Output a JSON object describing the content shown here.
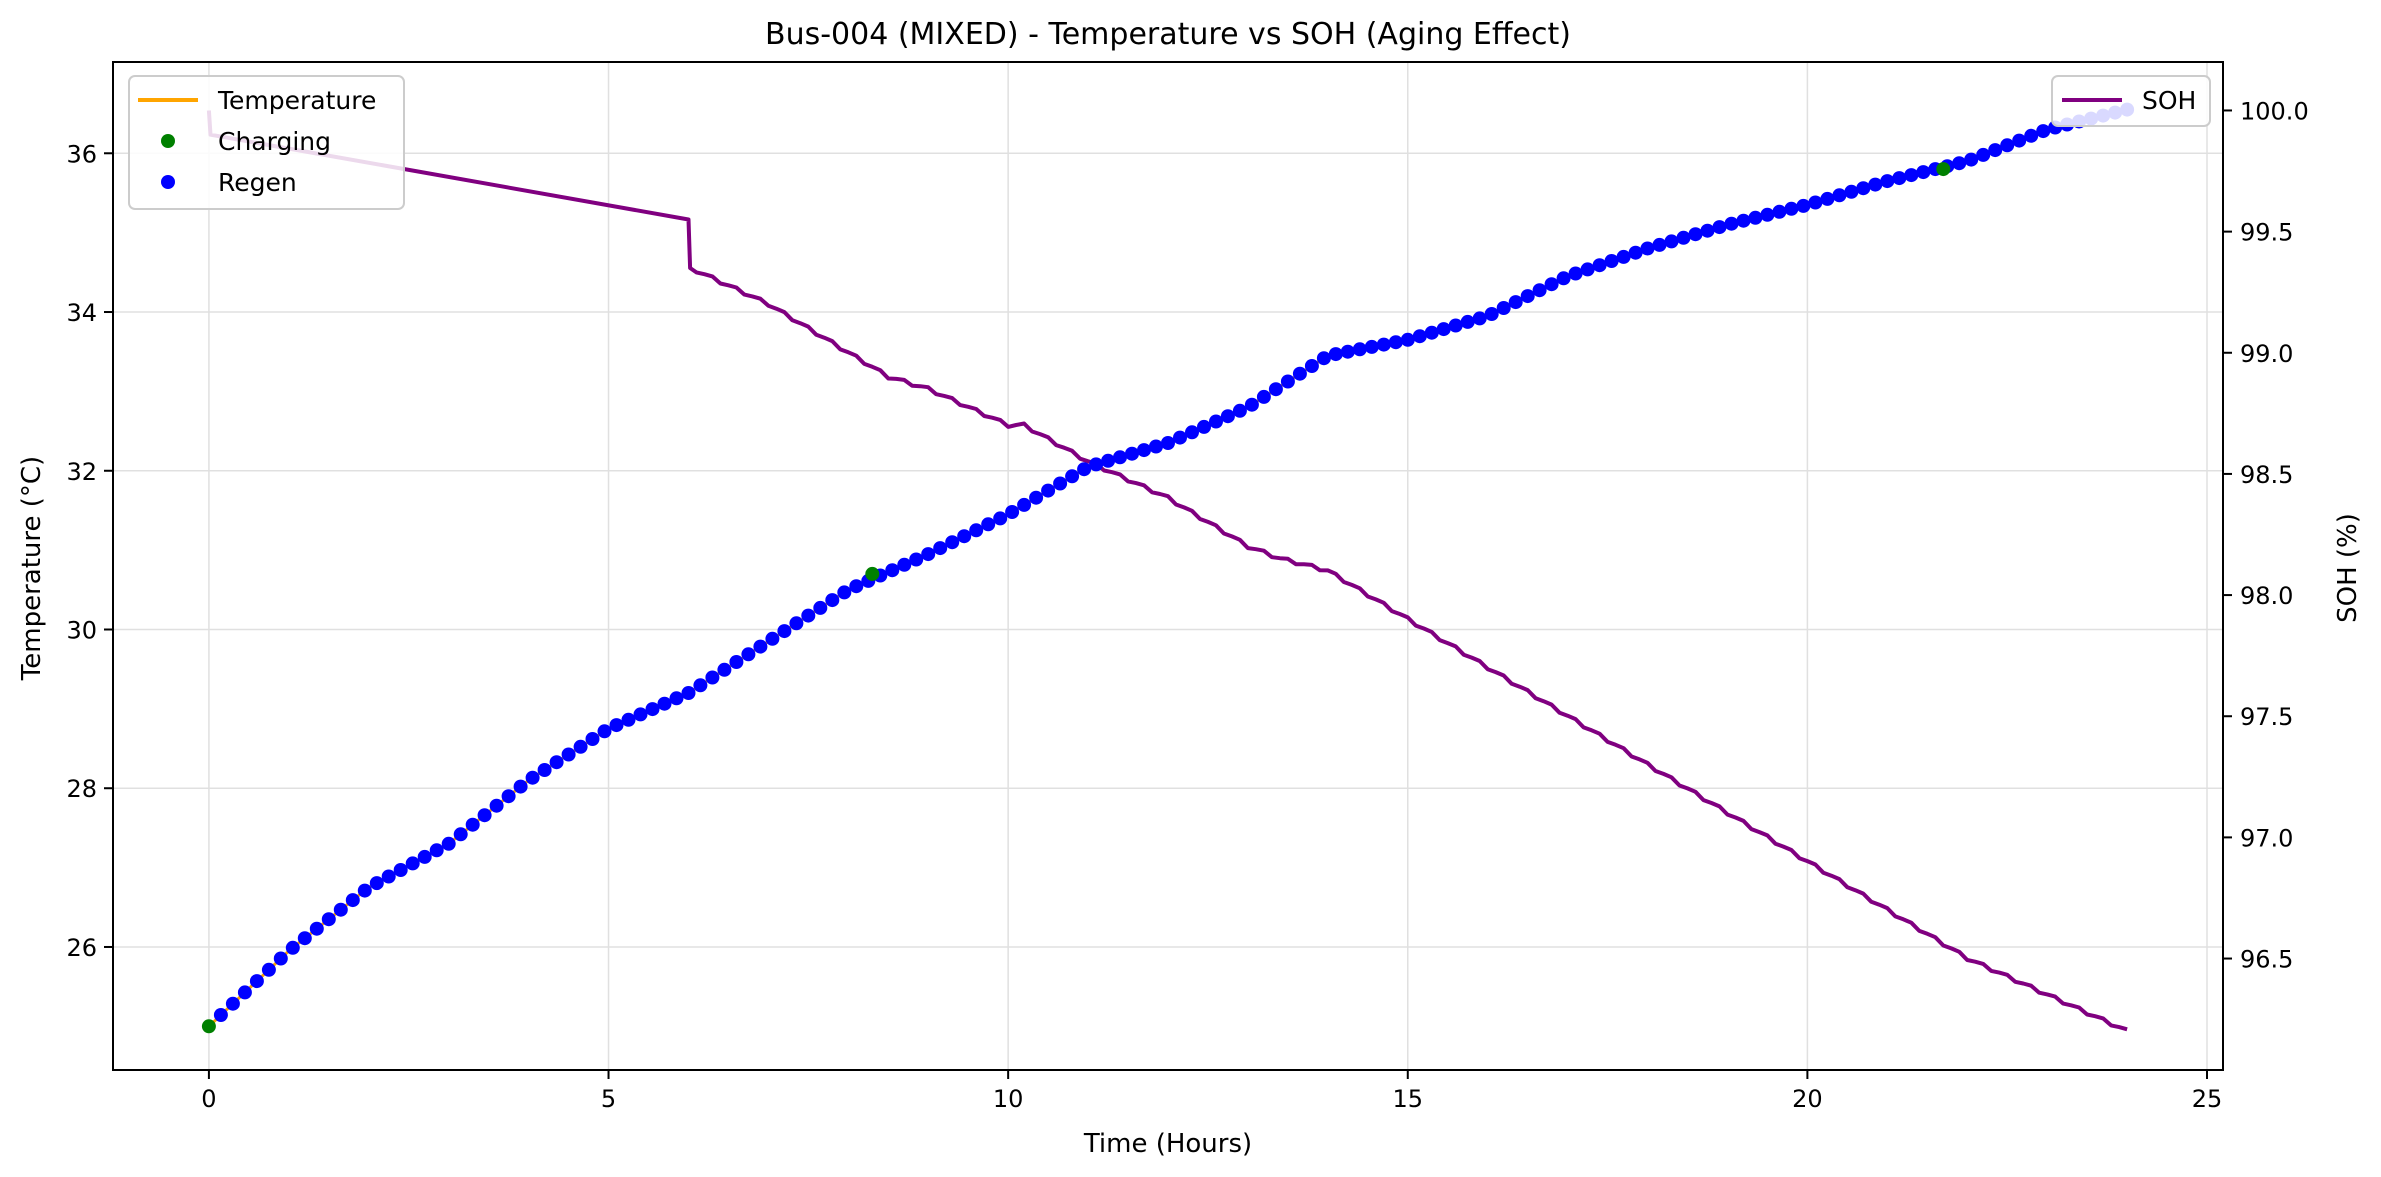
{
  "chart_data": {
    "type": "line",
    "title": "Bus-004 (MIXED) - Temperature vs SOH (Aging Effect)",
    "xlabel": "Time (Hours)",
    "ylabel_left": "Temperature (°C)",
    "ylabel_right": "SOH (%)",
    "xlim": [
      -1.2,
      25.2
    ],
    "ylim_left": [
      24.45,
      37.15
    ],
    "ylim_right": [
      96.04,
      100.2
    ],
    "x_ticks": [
      0,
      5,
      10,
      15,
      20,
      25
    ],
    "y_left_ticks": [
      26,
      28,
      30,
      32,
      34,
      36
    ],
    "y_right_ticks": [
      96.5,
      97.0,
      97.5,
      98.0,
      98.5,
      99.0,
      99.5,
      100.0
    ],
    "grid": true,
    "legend_left": {
      "placement": "upper-left",
      "entries": [
        {
          "label": "Temperature",
          "kind": "line",
          "color": "#ffa500"
        },
        {
          "label": "Charging",
          "kind": "marker",
          "color": "#008000"
        },
        {
          "label": "Regen",
          "kind": "marker",
          "color": "#0000ff"
        }
      ]
    },
    "legend_right": {
      "placement": "upper-right",
      "entries": [
        {
          "label": "SOH",
          "kind": "line",
          "color": "#800080"
        }
      ]
    },
    "temperature_points": [
      [
        0,
        25.0
      ],
      [
        1,
        25.95
      ],
      [
        2,
        26.75
      ],
      [
        3,
        27.3
      ],
      [
        4,
        28.1
      ],
      [
        5,
        28.75
      ],
      [
        6,
        29.2
      ],
      [
        7,
        29.85
      ],
      [
        8,
        30.5
      ],
      [
        9,
        30.95
      ],
      [
        10,
        31.45
      ],
      [
        11,
        32.05
      ],
      [
        12,
        32.35
      ],
      [
        13,
        32.8
      ],
      [
        14,
        33.45
      ],
      [
        15,
        33.65
      ],
      [
        16,
        33.95
      ],
      [
        17,
        34.45
      ],
      [
        18,
        34.8
      ],
      [
        19,
        35.1
      ],
      [
        20,
        35.35
      ],
      [
        21,
        35.65
      ],
      [
        22,
        35.9
      ],
      [
        23,
        36.3
      ],
      [
        24,
        36.55
      ]
    ],
    "charging_points": [
      [
        0,
        25.0
      ],
      [
        8.3,
        30.7
      ],
      [
        21.7,
        35.8
      ]
    ],
    "soh_points": [
      [
        0,
        100.0
      ],
      [
        0.02,
        99.9
      ],
      [
        6,
        99.55
      ],
      [
        6.02,
        99.35
      ],
      [
        7,
        99.2
      ],
      [
        8,
        99.0
      ],
      [
        8.5,
        98.9
      ],
      [
        9,
        98.85
      ],
      [
        10,
        98.7
      ],
      [
        10.2,
        98.7
      ],
      [
        11,
        98.55
      ],
      [
        12,
        98.4
      ],
      [
        13,
        98.2
      ],
      [
        13.4,
        98.15
      ],
      [
        14,
        98.1
      ],
      [
        15,
        97.9
      ],
      [
        16,
        97.7
      ],
      [
        17,
        97.5
      ],
      [
        18,
        97.3
      ],
      [
        18.5,
        97.2
      ],
      [
        19,
        97.1
      ],
      [
        20,
        96.9
      ],
      [
        21,
        96.7
      ],
      [
        22,
        96.5
      ],
      [
        23,
        96.35
      ],
      [
        24,
        96.2
      ]
    ],
    "colors": {
      "temperature": "#ffa500",
      "charging": "#008000",
      "regen": "#0000ff",
      "soh": "#800080",
      "grid": "#e0e0e0"
    }
  }
}
